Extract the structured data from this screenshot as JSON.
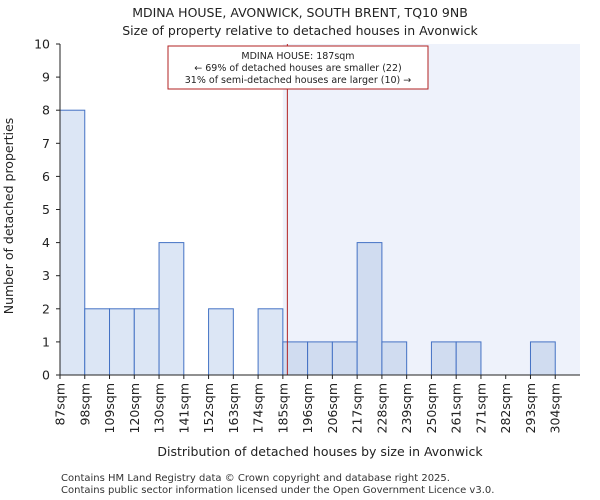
{
  "chart_data": {
    "type": "bar",
    "title": "MDINA HOUSE, AVONWICK, SOUTH BRENT, TQ10 9NB",
    "subtitle": "Size of property relative to detached houses in Avonwick",
    "xlabel": "Distribution of detached houses by size in Avonwick",
    "ylabel": "Number of detached properties",
    "categories": [
      "87sqm",
      "98sqm",
      "109sqm",
      "120sqm",
      "130sqm",
      "141sqm",
      "152sqm",
      "163sqm",
      "174sqm",
      "185sqm",
      "196sqm",
      "206sqm",
      "217sqm",
      "228sqm",
      "239sqm",
      "250sqm",
      "261sqm",
      "271sqm",
      "282sqm",
      "293sqm",
      "304sqm"
    ],
    "values": [
      8,
      2,
      2,
      2,
      4,
      0,
      2,
      0,
      2,
      1,
      1,
      1,
      4,
      1,
      0,
      1,
      1,
      0,
      0,
      1,
      0
    ],
    "ylim": [
      0,
      10
    ],
    "yticks": [
      0,
      1,
      2,
      3,
      4,
      5,
      6,
      7,
      8,
      9,
      10
    ],
    "marker_value_sqm": 187,
    "annotation": {
      "line1": "MDINA HOUSE: 187sqm",
      "line2": "← 69% of detached houses are smaller (22)",
      "line3": "31% of semi-detached houses are larger (10) →"
    },
    "colors": {
      "bar_left": "#dce6f5",
      "bar_right": "#d0dcf0",
      "bar_edge": "#4472c4",
      "highlight_bg": "#eef2fb",
      "marker": "#b22222",
      "axis": "#222222"
    }
  },
  "footer": {
    "line1": "Contains HM Land Registry data © Crown copyright and database right 2025.",
    "line2": "Contains public sector information licensed under the Open Government Licence v3.0."
  }
}
